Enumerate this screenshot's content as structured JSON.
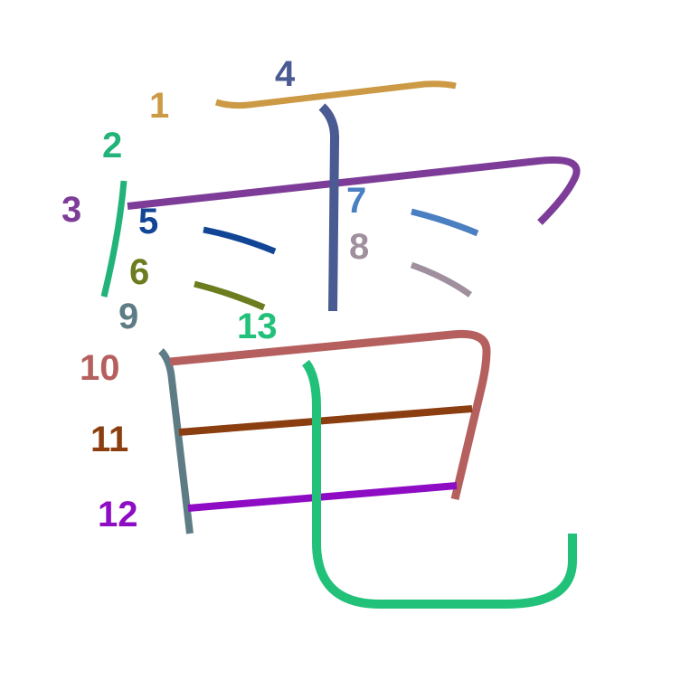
{
  "strokes": [
    {
      "number": "1",
      "color": "#cc9944"
    },
    {
      "number": "2",
      "color": "#22b37a"
    },
    {
      "number": "3",
      "color": "#7d3c98"
    },
    {
      "number": "4",
      "color": "#4a5a92"
    },
    {
      "number": "5",
      "color": "#124596"
    },
    {
      "number": "6",
      "color": "#6b7d1f"
    },
    {
      "number": "7",
      "color": "#4a7fc1"
    },
    {
      "number": "8",
      "color": "#a0909e"
    },
    {
      "number": "9",
      "color": "#5e7c85"
    },
    {
      "number": "10",
      "color": "#b5605e"
    },
    {
      "number": "11",
      "color": "#8b3e10"
    },
    {
      "number": "12",
      "color": "#8e0cc4"
    },
    {
      "number": "13",
      "color": "#22c17a"
    }
  ]
}
